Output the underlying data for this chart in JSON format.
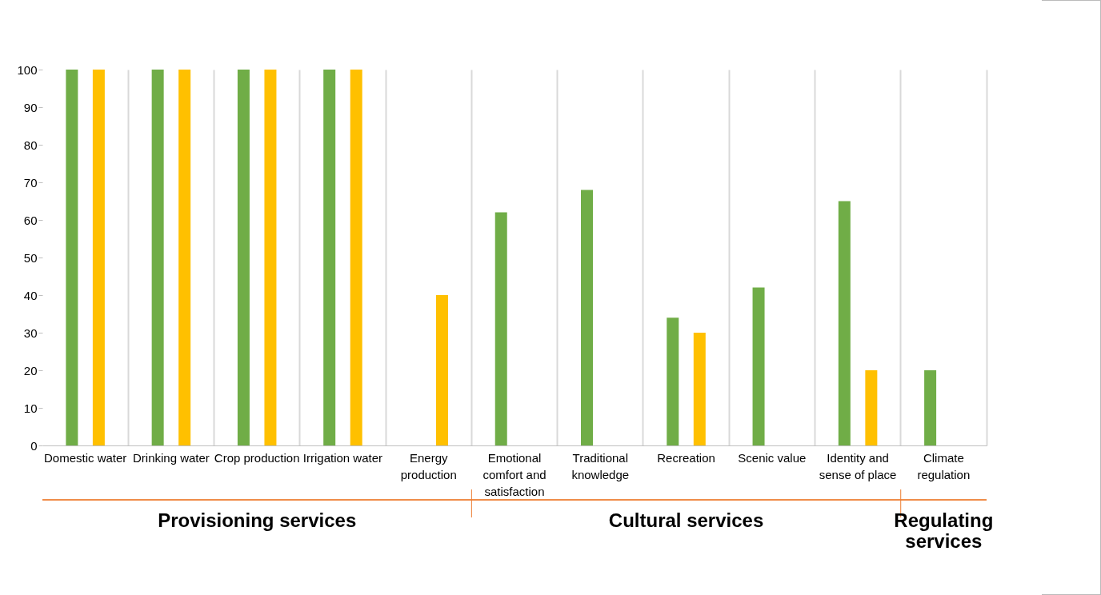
{
  "chart_data": {
    "type": "bar",
    "categories": [
      "Domestic water",
      "Drinking water",
      "Crop production",
      "Irrigation water",
      "Energy production",
      "Emotional comfort and satisfaction",
      "Traditional knowledge",
      "Recreation",
      "Scenic value",
      "Identity and sense of place",
      "Climate regulation"
    ],
    "series": [
      {
        "color": "#70ad47",
        "values": [
          100,
          100,
          100,
          100,
          null,
          62,
          68,
          34,
          42,
          65,
          20
        ]
      },
      {
        "color": "#ffc000",
        "values": [
          100,
          100,
          100,
          100,
          40,
          null,
          null,
          30,
          null,
          20,
          null
        ]
      }
    ],
    "ylim": [
      0,
      100
    ],
    "yticks": [
      0,
      10,
      20,
      30,
      40,
      50,
      60,
      70,
      80,
      90,
      100
    ],
    "grid": "x",
    "annotations": [
      "Provisioning services",
      "Cultural services",
      "Regulating services"
    ]
  }
}
